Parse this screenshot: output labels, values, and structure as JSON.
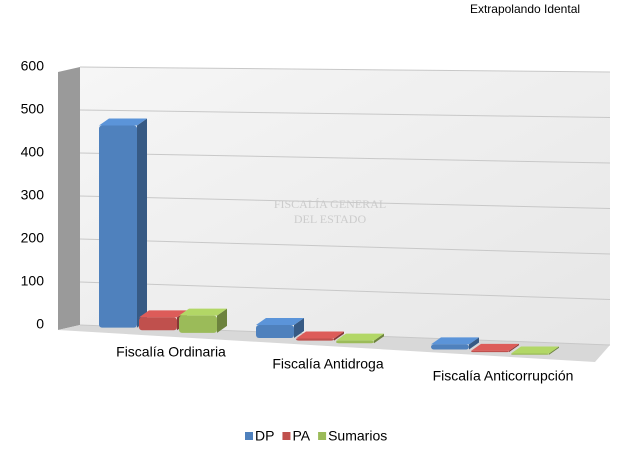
{
  "chart_data": {
    "type": "bar3d",
    "title": "Extrapolando Idental",
    "watermark": [
      "FISCALÍA GENERAL",
      "DEL ESTADO"
    ],
    "categories": [
      "Fiscalía Ordinaria",
      "Fiscalía Antidroga",
      "Fiscalía Anticorrupción"
    ],
    "series": [
      {
        "name": "DP",
        "color": "#4f81bd",
        "values": [
          470,
          30,
          12
        ]
      },
      {
        "name": "PA",
        "color": "#c0504d",
        "values": [
          30,
          5,
          3
        ]
      },
      {
        "name": "Sumarios",
        "color": "#9bbb59",
        "values": [
          40,
          6,
          3
        ]
      }
    ],
    "ylim": [
      0,
      600
    ],
    "yticks": [
      0,
      100,
      200,
      300,
      400,
      500,
      600
    ],
    "grid": true,
    "legend": "bottom"
  }
}
